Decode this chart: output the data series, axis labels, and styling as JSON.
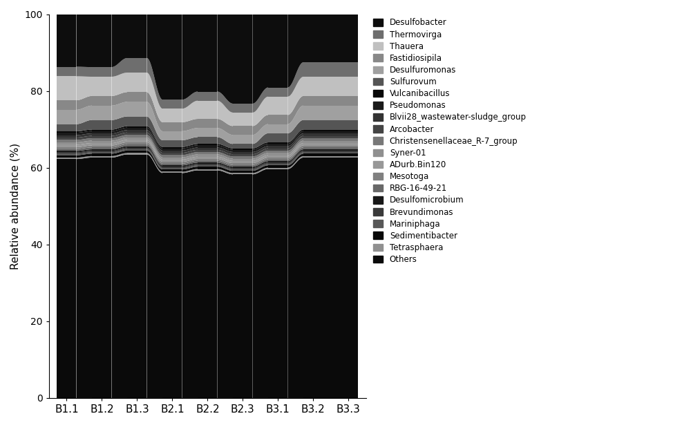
{
  "samples": [
    "B1.1",
    "B1.2",
    "B1.3",
    "B2.1",
    "B2.2",
    "B2.3",
    "B3.1",
    "B3.2",
    "B3.3"
  ],
  "taxa": [
    "Others",
    "Tetrasphaera",
    "Sedimentibacter",
    "Mariniphaga",
    "Brevundimonas",
    "Desulfomicrobium",
    "RBG-16-49-21",
    "Mesotoga",
    "ADurb.Bin120",
    "Syner-01",
    "Christensenellaceae_R-7_group",
    "Arcobacter",
    "Blvii28_wastewater-sludge_group",
    "Pseudomonas",
    "Vulcanibacillus",
    "Sulfurovum",
    "Desulfuromonas",
    "Fastidiosipila",
    "Thauera",
    "Thermovirga",
    "Desulfobacter"
  ],
  "legend_taxa": [
    "Desulfobacter",
    "Thermovirga",
    "Thauera",
    "Fastidiosipila",
    "Desulfuromonas",
    "Sulfurovum",
    "Vulcanibacillus",
    "Pseudomonas",
    "Blvii28_wastewater-sludge_group",
    "Arcobacter",
    "Christensenellaceae_R-7_group",
    "Syner-01",
    "ADurb.Bin120",
    "Mesotoga",
    "RBG-16-49-21",
    "Desulfomicrobium",
    "Brevundimonas",
    "Mariniphaga",
    "Sedimentibacter",
    "Tetrasphaera",
    "Others"
  ],
  "colors": [
    "#0a0a0a",
    "#909090",
    "#080808",
    "#585858",
    "#3a3a3a",
    "#181818",
    "#686868",
    "#808080",
    "#989898",
    "#909090",
    "#787878",
    "#444444",
    "#333333",
    "#1a1a1a",
    "#080808",
    "#555555",
    "#a0a0a0",
    "#888888",
    "#c0c0c0",
    "#6e6e6e",
    "#0d0d0d"
  ],
  "data": {
    "B1.1": [
      50,
      0.3,
      0.5,
      0.3,
      0.3,
      0.3,
      0.4,
      0.4,
      0.5,
      0.5,
      0.5,
      0.5,
      0.5,
      0.5,
      0.3,
      1.5,
      3.0,
      2.0,
      5.0,
      2.0,
      11.0
    ],
    "B1.2": [
      50,
      0.3,
      0.5,
      0.3,
      0.3,
      0.3,
      0.4,
      0.4,
      0.5,
      0.5,
      0.5,
      0.5,
      0.5,
      0.5,
      0.3,
      2.0,
      3.0,
      2.0,
      4.0,
      2.0,
      11.0
    ],
    "B1.3": [
      50,
      0.3,
      0.5,
      0.3,
      0.3,
      0.3,
      0.4,
      0.4,
      0.5,
      0.5,
      0.5,
      0.5,
      0.5,
      0.5,
      0.3,
      2.0,
      3.0,
      2.0,
      4.0,
      3.0,
      9.0
    ],
    "B2.1": [
      50,
      0.3,
      0.5,
      0.3,
      0.3,
      0.3,
      0.4,
      0.4,
      0.5,
      0.5,
      0.5,
      0.5,
      0.5,
      0.5,
      0.3,
      1.5,
      2.0,
      2.0,
      3.0,
      2.0,
      19.0
    ],
    "B2.2": [
      50,
      0.3,
      0.5,
      0.3,
      0.3,
      0.3,
      0.4,
      0.4,
      0.5,
      0.5,
      0.5,
      0.5,
      0.5,
      0.5,
      0.3,
      1.5,
      2.0,
      2.0,
      4.0,
      2.0,
      17.0
    ],
    "B2.3": [
      50,
      0.3,
      0.5,
      0.3,
      0.3,
      0.3,
      0.4,
      0.4,
      0.5,
      0.5,
      0.5,
      0.5,
      0.5,
      0.5,
      0.3,
      1.0,
      2.0,
      2.0,
      3.0,
      2.0,
      20.0
    ],
    "B3.1": [
      50,
      0.3,
      0.5,
      0.3,
      0.3,
      0.3,
      0.4,
      0.4,
      0.5,
      0.5,
      0.5,
      0.5,
      0.5,
      0.5,
      0.3,
      2.0,
      2.0,
      2.0,
      4.0,
      2.0,
      16.0
    ],
    "B3.2": [
      50,
      0.3,
      0.5,
      0.3,
      0.3,
      0.3,
      0.4,
      0.4,
      0.5,
      0.5,
      0.5,
      0.5,
      0.5,
      0.5,
      0.3,
      2.0,
      3.0,
      2.0,
      4.0,
      3.0,
      10.0
    ],
    "B3.3": [
      50,
      0.3,
      0.5,
      0.3,
      0.3,
      0.3,
      0.4,
      0.4,
      0.5,
      0.5,
      0.5,
      0.5,
      0.5,
      0.5,
      0.3,
      2.0,
      3.0,
      2.0,
      4.0,
      3.0,
      10.0
    ]
  },
  "ylabel": "Relative abundance (%)",
  "ylim": [
    0,
    100
  ],
  "bgcolor": "#ffffff",
  "bar_width": 0.55,
  "figsize": [
    10.0,
    6.15
  ],
  "dpi": 100
}
